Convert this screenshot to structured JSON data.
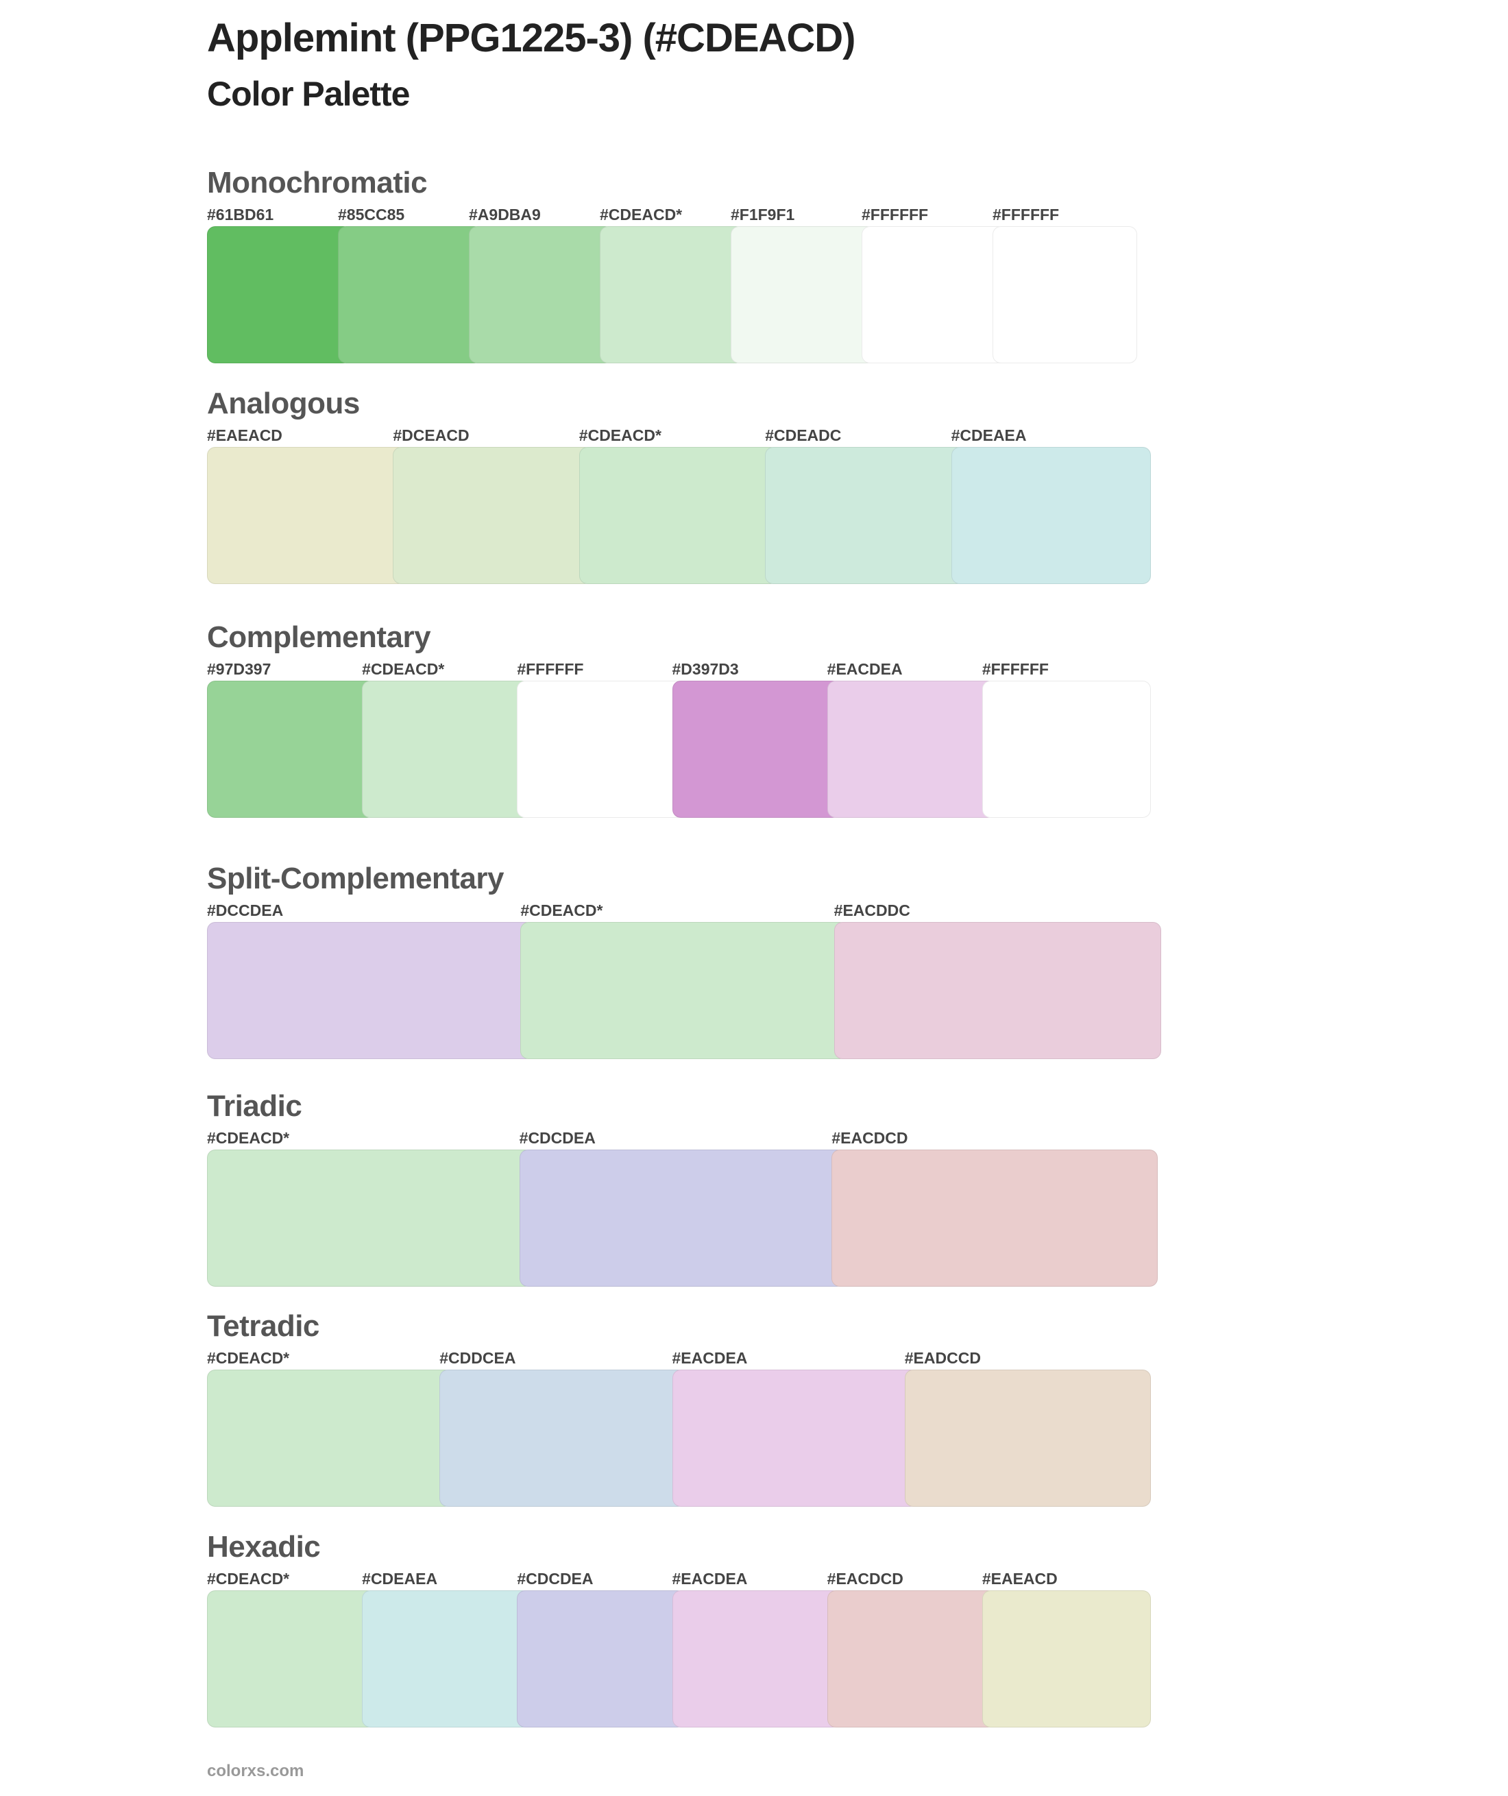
{
  "header": {
    "title": "Applemint (PPG1225-3) (#CDEACD)",
    "subtitle": "Color Palette"
  },
  "sections": [
    {
      "title": "Monochromatic",
      "colors": [
        {
          "label": "#61BD61",
          "hex": "#61BD61"
        },
        {
          "label": "#85CC85",
          "hex": "#85CC85"
        },
        {
          "label": "#A9DBA9",
          "hex": "#A9DBA9"
        },
        {
          "label": "#CDEACD*",
          "hex": "#CDEACD"
        },
        {
          "label": "#F1F9F1",
          "hex": "#F1F9F1"
        },
        {
          "label": "#FFFFFF",
          "hex": "#FFFFFF"
        },
        {
          "label": "#FFFFFF",
          "hex": "#FFFFFF"
        }
      ]
    },
    {
      "title": "Analogous",
      "colors": [
        {
          "label": "#EAEACD",
          "hex": "#EAEACD"
        },
        {
          "label": "#DCEACD",
          "hex": "#DCEACD"
        },
        {
          "label": "#CDEACD*",
          "hex": "#CDEACD"
        },
        {
          "label": "#CDEADC",
          "hex": "#CDEADC"
        },
        {
          "label": "#CDEAEA",
          "hex": "#CDEAEA"
        }
      ]
    },
    {
      "title": "Complementary",
      "colors": [
        {
          "label": "#97D397",
          "hex": "#97D397"
        },
        {
          "label": "#CDEACD*",
          "hex": "#CDEACD"
        },
        {
          "label": "#FFFFFF",
          "hex": "#FFFFFF"
        },
        {
          "label": "#D397D3",
          "hex": "#D397D3"
        },
        {
          "label": "#EACDEA",
          "hex": "#EACDEA"
        },
        {
          "label": "#FFFFFF",
          "hex": "#FFFFFF"
        }
      ]
    },
    {
      "title": "Split-Complementary",
      "colors": [
        {
          "label": "#DCCDEA",
          "hex": "#DCCDEA"
        },
        {
          "label": "#CDEACD*",
          "hex": "#CDEACD"
        },
        {
          "label": "#EACDDC",
          "hex": "#EACDDC"
        }
      ]
    },
    {
      "title": "Triadic",
      "colors": [
        {
          "label": "#CDEACD*",
          "hex": "#CDEACD"
        },
        {
          "label": "#CDCDEA",
          "hex": "#CDCDEA"
        },
        {
          "label": "#EACDCD",
          "hex": "#EACDCD"
        }
      ]
    },
    {
      "title": "Tetradic",
      "colors": [
        {
          "label": "#CDEACD*",
          "hex": "#CDEACD"
        },
        {
          "label": "#CDDCEA",
          "hex": "#CDDCEA"
        },
        {
          "label": "#EACDEA",
          "hex": "#EACDEA"
        },
        {
          "label": "#EADCCD",
          "hex": "#EADCCD"
        }
      ]
    },
    {
      "title": "Hexadic",
      "colors": [
        {
          "label": "#CDEACD*",
          "hex": "#CDEACD"
        },
        {
          "label": "#CDEAEA",
          "hex": "#CDEAEA"
        },
        {
          "label": "#CDCDEA",
          "hex": "#CDCDEA"
        },
        {
          "label": "#EACDEA",
          "hex": "#EACDEA"
        },
        {
          "label": "#EACDCD",
          "hex": "#EACDCD"
        },
        {
          "label": "#EAEACD",
          "hex": "#EAEACD"
        }
      ]
    }
  ],
  "footer": {
    "text": "colorxs.com"
  }
}
